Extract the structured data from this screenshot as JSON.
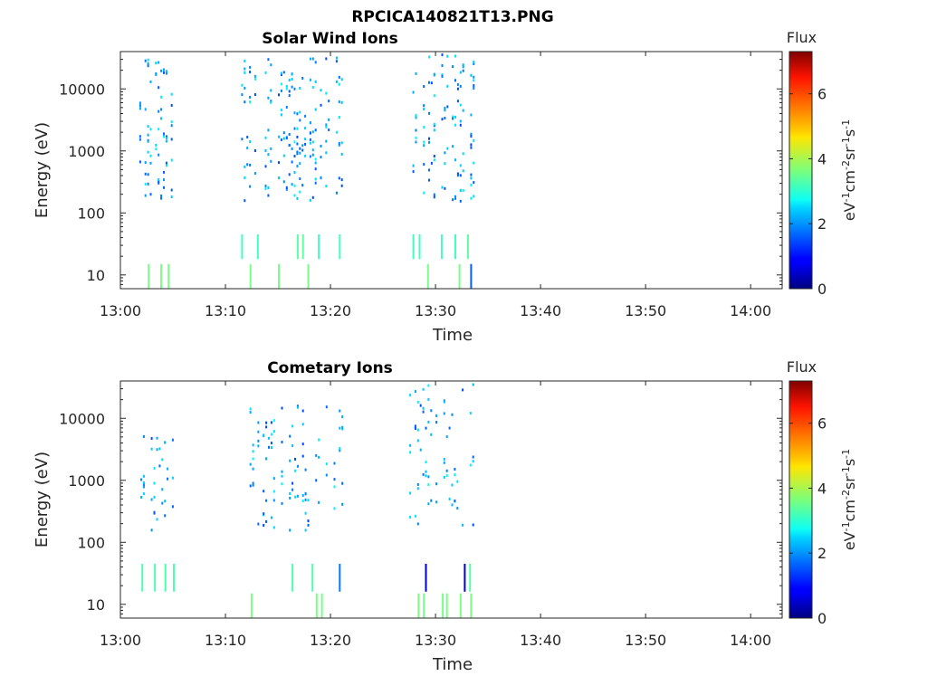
{
  "figure_title": "RPCICA140821T13.PNG",
  "chart_data": [
    {
      "type": "heatmap",
      "title": "Solar Wind Ions",
      "xlabel": "Time",
      "ylabel": "Energy (eV)",
      "y_scale": "log",
      "xlim": [
        "13:00",
        "14:03"
      ],
      "ylim": [
        6,
        40000
      ],
      "x_ticks": [
        "13:00",
        "13:10",
        "13:20",
        "13:30",
        "13:40",
        "13:50",
        "14:00"
      ],
      "y_ticks": [
        {
          "value": 10,
          "label": "10"
        },
        {
          "value": 100,
          "label": "100"
        },
        {
          "value": 1000,
          "label": "1000"
        },
        {
          "value": 10000,
          "label": "10000"
        }
      ],
      "colorbar": {
        "label": "Flux",
        "unit_label": "eV-1cm-2sr-1s-1",
        "range": [
          0,
          7.3
        ],
        "ticks": [
          0,
          2,
          4,
          6
        ],
        "colormap": "jet"
      },
      "active_intervals": [
        {
          "start": "13:01.8",
          "end": "13:05.0",
          "max_energy": 34000
        },
        {
          "start": "13:11.5",
          "end": "13:21.0",
          "max_energy": 32000
        },
        {
          "start": "13:27.8",
          "end": "13:33.5",
          "max_energy": 36000
        }
      ],
      "low_energy_bars": [
        {
          "time": "13:02.6",
          "e_low": 6,
          "e_high": 15,
          "flux": 3.6
        },
        {
          "time": "13:03.8",
          "e_low": 6,
          "e_high": 15,
          "flux": 3.6
        },
        {
          "time": "13:04.5",
          "e_low": 6,
          "e_high": 15,
          "flux": 3.6
        },
        {
          "time": "13:12.3",
          "e_low": 6,
          "e_high": 15,
          "flux": 3.6
        },
        {
          "time": "13:15.0",
          "e_low": 6,
          "e_high": 15,
          "flux": 3.6
        },
        {
          "time": "13:17.8",
          "e_low": 6,
          "e_high": 15,
          "flux": 3.6
        },
        {
          "time": "13:29.2",
          "e_low": 6,
          "e_high": 15,
          "flux": 3.6
        },
        {
          "time": "13:32.2",
          "e_low": 6,
          "e_high": 15,
          "flux": 3.6
        },
        {
          "time": "13:33.3",
          "e_low": 6,
          "e_high": 15,
          "flux": 1.6
        },
        {
          "time": "13:11.5",
          "e_low": 18,
          "e_high": 45,
          "flux": 3.2
        },
        {
          "time": "13:13.0",
          "e_low": 18,
          "e_high": 45,
          "flux": 3.2
        },
        {
          "time": "13:16.8",
          "e_low": 18,
          "e_high": 45,
          "flux": 3.4
        },
        {
          "time": "13:17.3",
          "e_low": 18,
          "e_high": 45,
          "flux": 3.4
        },
        {
          "time": "13:18.8",
          "e_low": 18,
          "e_high": 45,
          "flux": 3.2
        },
        {
          "time": "13:20.8",
          "e_low": 18,
          "e_high": 45,
          "flux": 3.2
        },
        {
          "time": "13:27.8",
          "e_low": 18,
          "e_high": 45,
          "flux": 3.2
        },
        {
          "time": "13:28.4",
          "e_low": 18,
          "e_high": 45,
          "flux": 3.2
        },
        {
          "time": "13:30.5",
          "e_low": 18,
          "e_high": 45,
          "flux": 3.2
        },
        {
          "time": "13:31.8",
          "e_low": 18,
          "e_high": 45,
          "flux": 3.2
        },
        {
          "time": "13:33.0",
          "e_low": 18,
          "e_high": 45,
          "flux": 3.4
        }
      ]
    },
    {
      "type": "heatmap",
      "title": "Cometary Ions",
      "xlabel": "Time",
      "ylabel": "Energy (eV)",
      "y_scale": "log",
      "xlim": [
        "13:00",
        "14:03"
      ],
      "ylim": [
        6,
        40000
      ],
      "x_ticks": [
        "13:00",
        "13:10",
        "13:20",
        "13:30",
        "13:40",
        "13:50",
        "14:00"
      ],
      "y_ticks": [
        {
          "value": 10,
          "label": "10"
        },
        {
          "value": 100,
          "label": "100"
        },
        {
          "value": 1000,
          "label": "1000"
        },
        {
          "value": 10000,
          "label": "10000"
        }
      ],
      "colorbar": {
        "label": "Flux",
        "unit_label": "eV-1cm-2sr-1s-1",
        "range": [
          0,
          7.3
        ],
        "ticks": [
          0,
          2,
          4,
          6
        ],
        "colormap": "jet"
      },
      "active_intervals": [
        {
          "start": "13:01.9",
          "end": "13:05.0",
          "max_energy": 5500
        },
        {
          "start": "13:12.3",
          "end": "13:21.0",
          "max_energy": 16000
        },
        {
          "start": "13:27.5",
          "end": "13:33.5",
          "max_energy": 36000
        }
      ],
      "low_energy_bars": [
        {
          "time": "13:12.4",
          "e_low": 6,
          "e_high": 15,
          "flux": 3.6
        },
        {
          "time": "13:18.6",
          "e_low": 6,
          "e_high": 15,
          "flux": 3.6
        },
        {
          "time": "13:19.1",
          "e_low": 6,
          "e_high": 15,
          "flux": 3.6
        },
        {
          "time": "13:28.3",
          "e_low": 6,
          "e_high": 15,
          "flux": 3.6
        },
        {
          "time": "13:28.8",
          "e_low": 6,
          "e_high": 15,
          "flux": 3.6
        },
        {
          "time": "13:30.6",
          "e_low": 6,
          "e_high": 15,
          "flux": 3.6
        },
        {
          "time": "13:31.0",
          "e_low": 6,
          "e_high": 15,
          "flux": 3.6
        },
        {
          "time": "13:32.3",
          "e_low": 6,
          "e_high": 15,
          "flux": 3.6
        },
        {
          "time": "13:33.3",
          "e_low": 6,
          "e_high": 15,
          "flux": 3.6
        },
        {
          "time": "13:02.0",
          "e_low": 16,
          "e_high": 45,
          "flux": 3.3
        },
        {
          "time": "13:03.2",
          "e_low": 16,
          "e_high": 45,
          "flux": 3.3
        },
        {
          "time": "13:04.2",
          "e_low": 16,
          "e_high": 45,
          "flux": 3.3
        },
        {
          "time": "13:05.0",
          "e_low": 16,
          "e_high": 45,
          "flux": 3.3
        },
        {
          "time": "13:16.3",
          "e_low": 16,
          "e_high": 45,
          "flux": 3.3
        },
        {
          "time": "13:18.2",
          "e_low": 16,
          "e_high": 45,
          "flux": 3.3
        },
        {
          "time": "13:20.8",
          "e_low": 16,
          "e_high": 45,
          "flux": 1.8
        },
        {
          "time": "13:29.0",
          "e_low": 16,
          "e_high": 45,
          "flux": 0.6
        },
        {
          "time": "13:32.7",
          "e_low": 16,
          "e_high": 45,
          "flux": 0.6
        },
        {
          "time": "13:33.2",
          "e_low": 16,
          "e_high": 45,
          "flux": 3.3
        }
      ]
    }
  ]
}
